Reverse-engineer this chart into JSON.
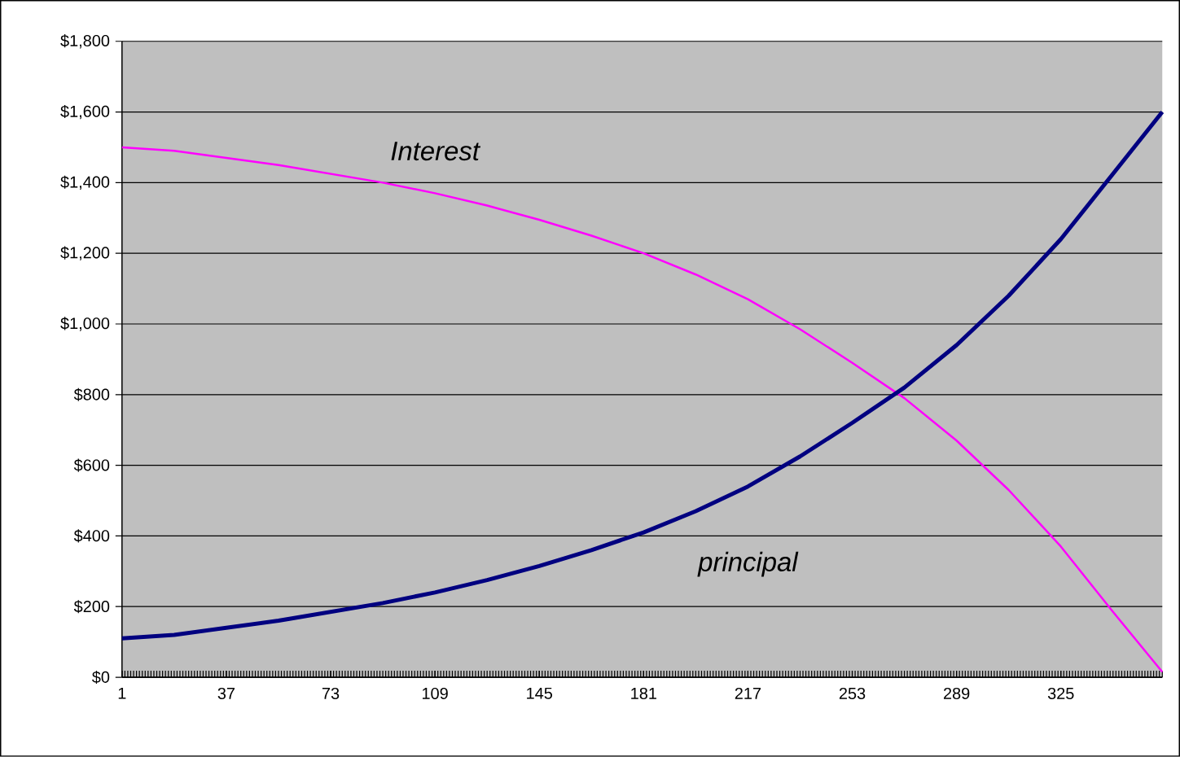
{
  "chart_data": {
    "type": "line",
    "x": [
      1,
      19,
      37,
      55,
      73,
      91,
      109,
      127,
      145,
      163,
      181,
      199,
      217,
      235,
      253,
      271,
      289,
      307,
      325,
      343,
      360
    ],
    "series": [
      {
        "name": "Interest",
        "color": "#ff00ff",
        "values": [
          1500,
          1490,
          1470,
          1450,
          1425,
          1400,
          1370,
          1335,
          1295,
          1250,
          1200,
          1140,
          1070,
          985,
          890,
          790,
          670,
          530,
          370,
          185,
          15
        ]
      },
      {
        "name": "principal",
        "color": "#000080",
        "values": [
          110,
          120,
          140,
          160,
          185,
          210,
          240,
          275,
          315,
          360,
          410,
          470,
          540,
          625,
          720,
          820,
          940,
          1080,
          1240,
          1425,
          1600
        ]
      }
    ],
    "xlim": [
      1,
      360
    ],
    "xticks": [
      1,
      37,
      73,
      109,
      145,
      181,
      217,
      253,
      289,
      325
    ],
    "ylim": [
      0,
      1800
    ],
    "yticks": [
      {
        "value": 0,
        "label": "$0"
      },
      {
        "value": 200,
        "label": "$200"
      },
      {
        "value": 400,
        "label": "$400"
      },
      {
        "value": 600,
        "label": "$600"
      },
      {
        "value": 800,
        "label": "$800"
      },
      {
        "value": 1000,
        "label": "$1,000"
      },
      {
        "value": 1200,
        "label": "$1,200"
      },
      {
        "value": 1400,
        "label": "$1,400"
      },
      {
        "value": 1600,
        "label": "$1,600"
      },
      {
        "value": 1800,
        "label": "$1,800"
      }
    ],
    "grid": "y",
    "legend": false,
    "marker": "none",
    "line_style": "solid"
  }
}
